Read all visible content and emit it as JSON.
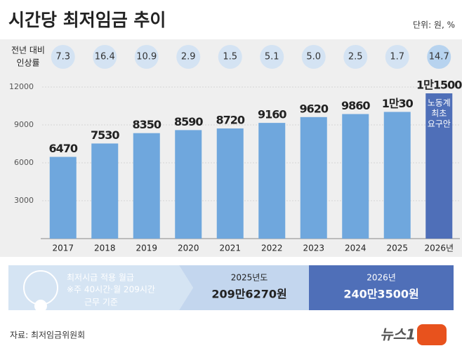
{
  "chart_data": {
    "type": "bar",
    "title": "시간당 최저임금 추이",
    "unit": "단위: 원, %",
    "rate_title": [
      "전년 대비",
      "인상률"
    ],
    "categories": [
      "2017",
      "2018",
      "2019",
      "2020",
      "2021",
      "2022",
      "2023",
      "2024",
      "2025",
      "2026년"
    ],
    "values": [
      6470,
      7530,
      8350,
      8590,
      8720,
      9160,
      9620,
      9860,
      10030,
      11500
    ],
    "value_labels": [
      "6470",
      "7530",
      "8350",
      "8590",
      "8720",
      "9160",
      "9620",
      "9860",
      "1만30",
      "1만1500"
    ],
    "rates": [
      7.3,
      16.4,
      10.9,
      2.9,
      1.5,
      5.1,
      {
        "value": 5.0,
        "label": "5.0"
      },
      2.5,
      1.7,
      14.7
    ],
    "colors": [
      "#6fa7dd",
      "#6fa7dd",
      "#6fa7dd",
      "#6fa7dd",
      "#6fa7dd",
      "#6fa7dd",
      "#6fa7dd",
      "#6fa7dd",
      "#6fa7dd",
      "#4f6fb8"
    ],
    "last_bar_note": [
      "노동계",
      "최초",
      "요구안"
    ],
    "ylim": [
      0,
      12000
    ],
    "yticks": [
      3000,
      6000,
      9000,
      12000
    ],
    "grid": true,
    "monthly": {
      "title": "최저시급 적용 월급",
      "note": [
        "※주 40시간·월 209시간",
        "근무 기준"
      ],
      "y2025": "2025년도",
      "v2025": "209만6270원",
      "y2026": "2026년",
      "v2026": "240만3500원"
    },
    "source": "자료: 최저임금위원회",
    "logo": "뉴스1"
  }
}
